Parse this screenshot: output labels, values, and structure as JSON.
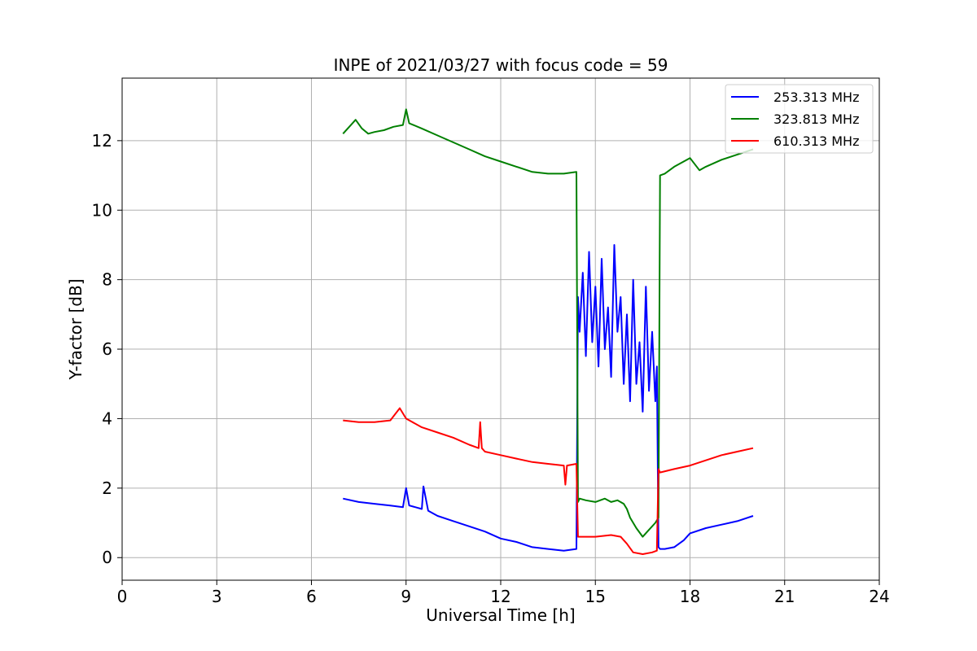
{
  "chart_data": {
    "type": "line",
    "title": "INPE of 2021/03/27 with focus code = 59",
    "xlabel": "Universal Time [h]",
    "ylabel": "Y-factor [dB]",
    "xlim": [
      0,
      24
    ],
    "ylim": [
      -0.65,
      13.8
    ],
    "xticks": [
      0,
      3,
      6,
      9,
      12,
      15,
      18,
      21,
      24
    ],
    "yticks": [
      0,
      2,
      4,
      6,
      8,
      10,
      12
    ],
    "grid": true,
    "legend_position": "top-right",
    "series": [
      {
        "name": "253.313 MHz",
        "color": "#0000ff",
        "x": [
          7.0,
          7.5,
          8.0,
          8.5,
          8.9,
          9.0,
          9.1,
          9.3,
          9.5,
          9.55,
          9.7,
          10.0,
          10.5,
          11.0,
          11.5,
          12.0,
          12.5,
          13.0,
          13.5,
          14.0,
          14.4,
          14.45,
          14.5,
          14.6,
          14.7,
          14.8,
          14.9,
          15.0,
          15.1,
          15.2,
          15.3,
          15.4,
          15.5,
          15.6,
          15.7,
          15.8,
          15.9,
          16.0,
          16.1,
          16.2,
          16.3,
          16.4,
          16.5,
          16.6,
          16.7,
          16.8,
          16.9,
          16.95,
          17.0,
          17.05,
          17.2,
          17.5,
          17.8,
          18.0,
          18.5,
          19.0,
          19.5,
          20.0
        ],
        "y": [
          1.7,
          1.6,
          1.55,
          1.5,
          1.45,
          2.0,
          1.5,
          1.45,
          1.4,
          2.05,
          1.35,
          1.2,
          1.05,
          0.9,
          0.75,
          0.55,
          0.45,
          0.3,
          0.25,
          0.2,
          0.25,
          7.5,
          6.5,
          8.2,
          5.8,
          8.8,
          6.2,
          7.8,
          5.5,
          8.6,
          6.0,
          7.2,
          5.2,
          9.0,
          6.5,
          7.5,
          5.0,
          7.0,
          4.5,
          8.0,
          5.0,
          6.2,
          4.2,
          7.8,
          4.8,
          6.5,
          4.5,
          5.5,
          0.3,
          0.25,
          0.25,
          0.3,
          0.5,
          0.7,
          0.85,
          0.95,
          1.05,
          1.2
        ]
      },
      {
        "name": "323.813 MHz",
        "color": "#008000",
        "x": [
          7.0,
          7.2,
          7.4,
          7.6,
          7.8,
          8.0,
          8.3,
          8.6,
          8.9,
          9.0,
          9.1,
          9.5,
          10.0,
          10.5,
          11.0,
          11.5,
          12.0,
          12.5,
          13.0,
          13.5,
          14.0,
          14.4,
          14.45,
          14.5,
          14.7,
          15.0,
          15.3,
          15.5,
          15.7,
          15.9,
          16.0,
          16.1,
          16.3,
          16.5,
          16.7,
          16.9,
          17.0,
          17.05,
          17.2,
          17.5,
          18.0,
          18.3,
          18.5,
          19.0,
          19.5,
          20.0
        ],
        "y": [
          12.2,
          12.4,
          12.6,
          12.35,
          12.2,
          12.25,
          12.3,
          12.4,
          12.45,
          12.9,
          12.5,
          12.35,
          12.15,
          11.95,
          11.75,
          11.55,
          11.4,
          11.25,
          11.1,
          11.05,
          11.05,
          11.1,
          1.6,
          1.7,
          1.65,
          1.6,
          1.7,
          1.6,
          1.65,
          1.55,
          1.4,
          1.15,
          0.85,
          0.6,
          0.8,
          1.0,
          1.15,
          11.0,
          11.05,
          11.25,
          11.5,
          11.15,
          11.25,
          11.45,
          11.6,
          11.75
        ]
      },
      {
        "name": "610.313 MHz",
        "color": "#ff0000",
        "x": [
          7.0,
          7.5,
          8.0,
          8.5,
          8.8,
          9.0,
          9.5,
          10.0,
          10.5,
          11.0,
          11.3,
          11.35,
          11.4,
          11.5,
          12.0,
          12.5,
          13.0,
          13.5,
          14.0,
          14.05,
          14.1,
          14.4,
          14.45,
          14.5,
          15.0,
          15.5,
          15.8,
          16.0,
          16.2,
          16.5,
          16.8,
          16.95,
          17.0,
          17.05,
          17.5,
          18.0,
          18.5,
          19.0,
          19.5,
          20.0
        ],
        "y": [
          3.95,
          3.9,
          3.9,
          3.95,
          4.3,
          4.0,
          3.75,
          3.6,
          3.45,
          3.25,
          3.15,
          3.9,
          3.15,
          3.05,
          2.95,
          2.85,
          2.75,
          2.7,
          2.65,
          2.1,
          2.65,
          2.7,
          0.6,
          0.6,
          0.6,
          0.65,
          0.6,
          0.4,
          0.15,
          0.1,
          0.15,
          0.2,
          2.55,
          2.45,
          2.55,
          2.65,
          2.8,
          2.95,
          3.05,
          3.15
        ]
      }
    ]
  }
}
